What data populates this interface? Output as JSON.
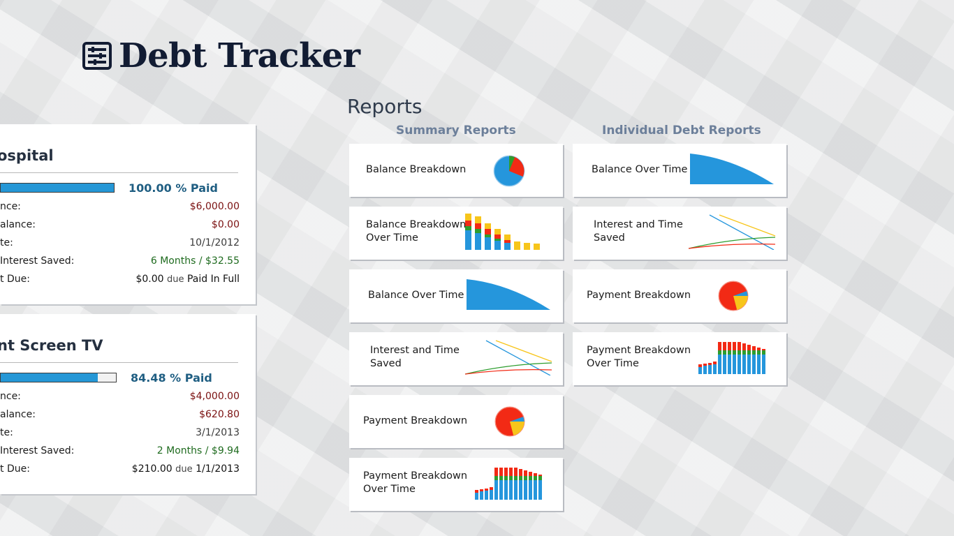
{
  "app": {
    "title": "Debt Tracker",
    "icon": "calculator-icon"
  },
  "debts": [
    {
      "name": "ospital",
      "paid_percent": 100.0,
      "paid_text": "100.00 % Paid",
      "rows": [
        {
          "label": "nce:",
          "value": "$6,000.00"
        },
        {
          "label": "alance:",
          "value": "$0.00"
        },
        {
          "label": "te:",
          "value": "10/1/2012"
        },
        {
          "label": "Interest Saved:",
          "value": "6 Months / $32.55"
        },
        {
          "label": "t Due:",
          "value": "$0.00",
          "due_word": "due",
          "due_value": "Paid In Full"
        }
      ]
    },
    {
      "name": "nt Screen TV",
      "paid_percent": 84.48,
      "paid_text": "84.48 % Paid",
      "rows": [
        {
          "label": "nce:",
          "value": "$4,000.00"
        },
        {
          "label": "alance:",
          "value": "$620.80"
        },
        {
          "label": "te:",
          "value": "3/1/2013"
        },
        {
          "label": "Interest Saved:",
          "value": "2 Months / $9.94"
        },
        {
          "label": "t Due:",
          "value": "$210.00",
          "due_word": "due",
          "due_value": "1/1/2013"
        }
      ]
    }
  ],
  "reports": {
    "heading": "Reports",
    "summary": {
      "heading": "Summary Reports",
      "tiles": [
        {
          "label": "Balance Breakdown",
          "chart": "pie-balance"
        },
        {
          "label": "Balance Breakdown\nOver Time",
          "chart": "stacked-bars-balance"
        },
        {
          "label": "Balance Over Time",
          "chart": "area-decline"
        },
        {
          "label": "Interest and Time\nSaved",
          "chart": "lines-interest"
        },
        {
          "label": "Payment Breakdown",
          "chart": "pie-payment"
        },
        {
          "label": "Payment Breakdown\nOver Time",
          "chart": "stacked-bars-payment"
        }
      ]
    },
    "individual": {
      "heading": "Individual Debt Reports",
      "tiles": [
        {
          "label": "Balance Over Time",
          "chart": "area-decline"
        },
        {
          "label": "Interest and Time\nSaved",
          "chart": "lines-interest"
        },
        {
          "label": "Payment Breakdown",
          "chart": "pie-payment"
        },
        {
          "label": "Payment Breakdown\nOver Time",
          "chart": "stacked-bars-payment"
        }
      ]
    }
  },
  "colors": {
    "blue": "#2596dc",
    "red": "#f22a15",
    "green": "#2e9d2e",
    "yellow": "#f7c51b",
    "title": "#121c33",
    "accent_text": "#6c7f9a"
  }
}
